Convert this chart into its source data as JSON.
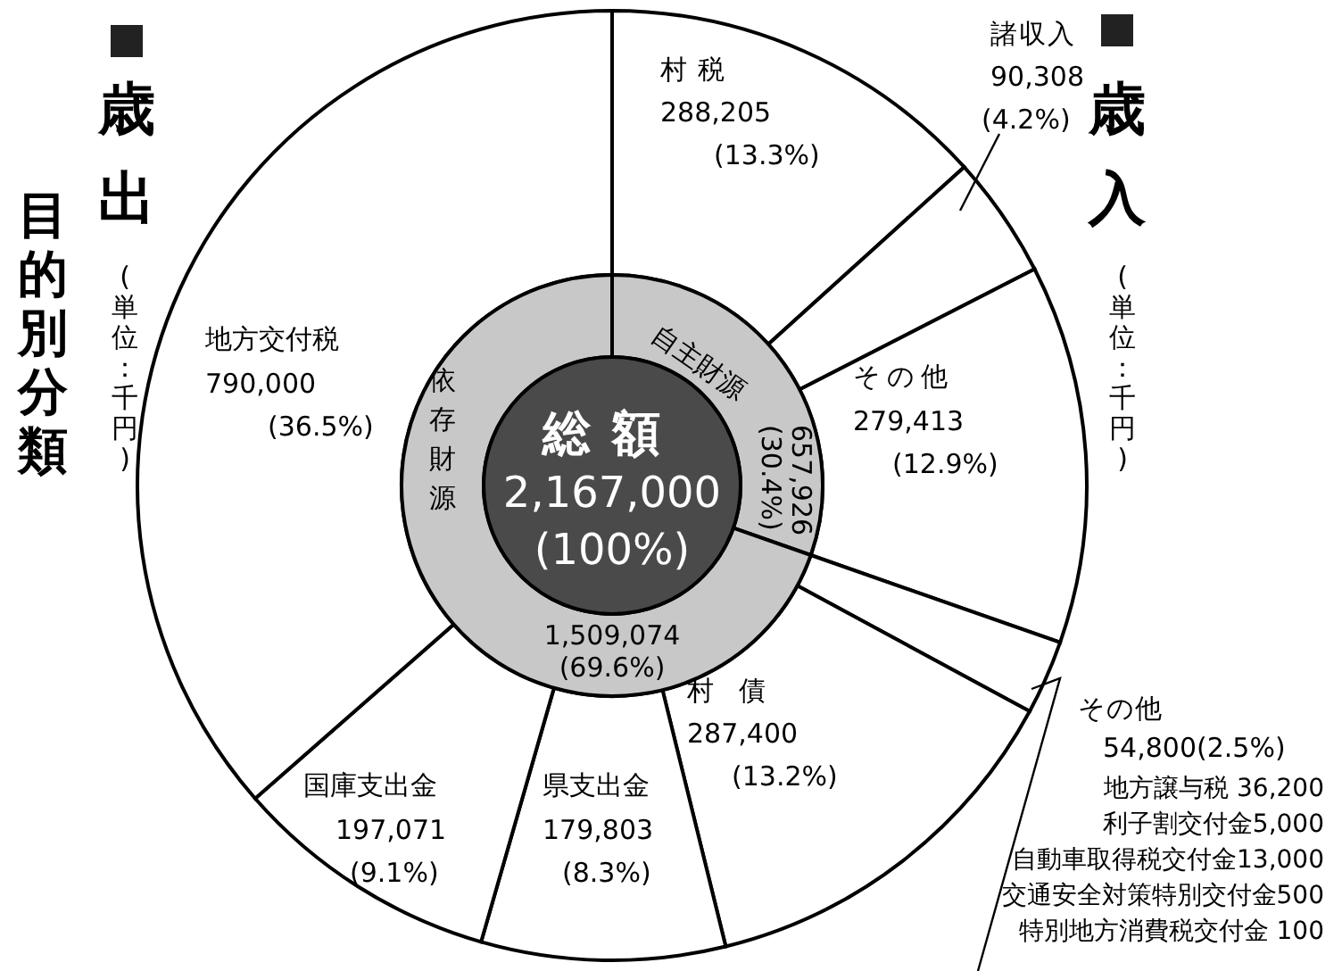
{
  "chart_data": [
    {
      "type": "donut",
      "title": "歳入",
      "categories": [
        "村税",
        "諸収入",
        "その他",
        "その他",
        "村債",
        "県支出金",
        "国庫支出金",
        "地方交付税"
      ],
      "values": [
        288205,
        90308,
        279413,
        54800,
        287400,
        179803,
        197071,
        790000
      ],
      "colors": [
        "#ffffff",
        "#ffffff",
        "#ffffff",
        "#ffffff",
        "#ffffff",
        "#ffffff",
        "#ffffff",
        "#ffffff"
      ],
      "value_labels": [
        "288,205\n(13.3%)",
        "90,308\n(4.2%)",
        "279,413\n(12.9%)",
        "54,800(2.5%)",
        "287,400\n(13.2%)",
        "179,803\n(8.3%)",
        "197,071\n(9.1%)",
        "790,000\n(36.5%)"
      ],
      "annotations": [
        "(単位：千円)",
        "歳出",
        "目的別分類",
        "(単位：千円)",
        "地方譲与税 36,200",
        "利子割交付金5,000",
        "自動車取得税交付金13,000",
        "交通安全対策特別交付金500",
        "特別地方消費税交付金 100"
      ]
    },
    {
      "type": "donut",
      "categories": [
        "自主財源",
        "依存財源"
      ],
      "values": [
        657926,
        1509074
      ],
      "colors": [
        "#c8c8c8",
        "#c8c8c8"
      ],
      "value_labels": [
        "657,926\n(30.4%)",
        "1,509,074\n(69.6%)"
      ]
    },
    {
      "type": "pie",
      "categories": [
        "総額"
      ],
      "values": [
        2167000
      ],
      "colors": [
        "#4a4a4a"
      ],
      "value_labels": [
        "2,167,000\n(100%)"
      ]
    }
  ]
}
